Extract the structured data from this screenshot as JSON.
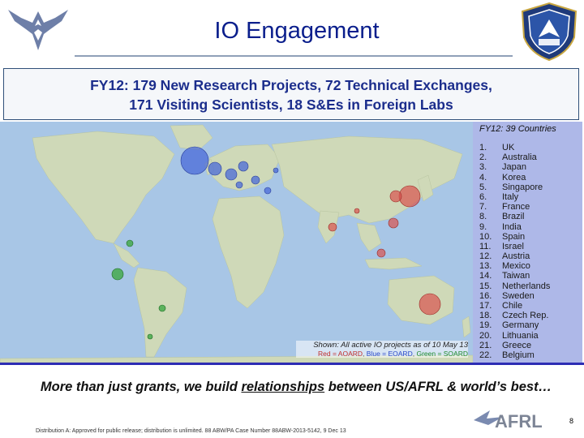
{
  "header": {
    "title": "IO Engagement",
    "logo_left": "air-force-wings-logo",
    "logo_right": "afrl-shield-seal"
  },
  "banner": {
    "line1": "FY12:  179 New Research Projects, 72 Technical Exchanges,",
    "line2": "171 Visiting Scientists, 18 S&Es in Foreign Labs"
  },
  "map": {
    "caption_line1": "Shown:  All active IO projects as of 10 May 13",
    "legend_red": "Red = AOARD",
    "legend_blue": "Blue = EOARD",
    "legend_green": "Green = SOARD",
    "legend_sep": ", ",
    "colors": {
      "red": "#d9534f",
      "blue": "#4a6ad8",
      "green": "#3ea845",
      "ocean": "#a8c6e6",
      "land": "#cfd9b8"
    }
  },
  "countries_panel": {
    "heading": "FY12:  39 Countries",
    "items": [
      {
        "num": "1.",
        "name": "UK"
      },
      {
        "num": "2.",
        "name": "Australia"
      },
      {
        "num": "3.",
        "name": "Japan"
      },
      {
        "num": "4.",
        "name": "Korea"
      },
      {
        "num": "5.",
        "name": "Singapore"
      },
      {
        "num": "6.",
        "name": "Italy"
      },
      {
        "num": "7.",
        "name": "France"
      },
      {
        "num": "8.",
        "name": "Brazil"
      },
      {
        "num": "9.",
        "name": "India"
      },
      {
        "num": "10.",
        "name": "Spain"
      },
      {
        "num": "11.",
        "name": "Israel"
      },
      {
        "num": "12.",
        "name": "Austria"
      },
      {
        "num": "13.",
        "name": "Mexico"
      },
      {
        "num": "14.",
        "name": "Taiwan"
      },
      {
        "num": "15.",
        "name": "Netherlands"
      },
      {
        "num": "16.",
        "name": "Sweden"
      },
      {
        "num": "17.",
        "name": "Chile"
      },
      {
        "num": "18.",
        "name": "Czech Rep."
      },
      {
        "num": "19.",
        "name": "Germany"
      },
      {
        "num": "20.",
        "name": "Lithuania"
      },
      {
        "num": "21.",
        "name": "Greece"
      },
      {
        "num": "22.",
        "name": "Belgium"
      }
    ]
  },
  "tagline": {
    "part1": "More than just grants, we build ",
    "underlined": "relationships",
    "part2": " between US/AFRL & world’s best…"
  },
  "footer": {
    "distribution": "Distribution A:  Approved for public release; distribution is unlimited.  88 ABW/PA Case Number 88ABW-2013-5142, 9 Dec 13",
    "afrl_logo_text": "AFRL",
    "page_number": "8"
  }
}
